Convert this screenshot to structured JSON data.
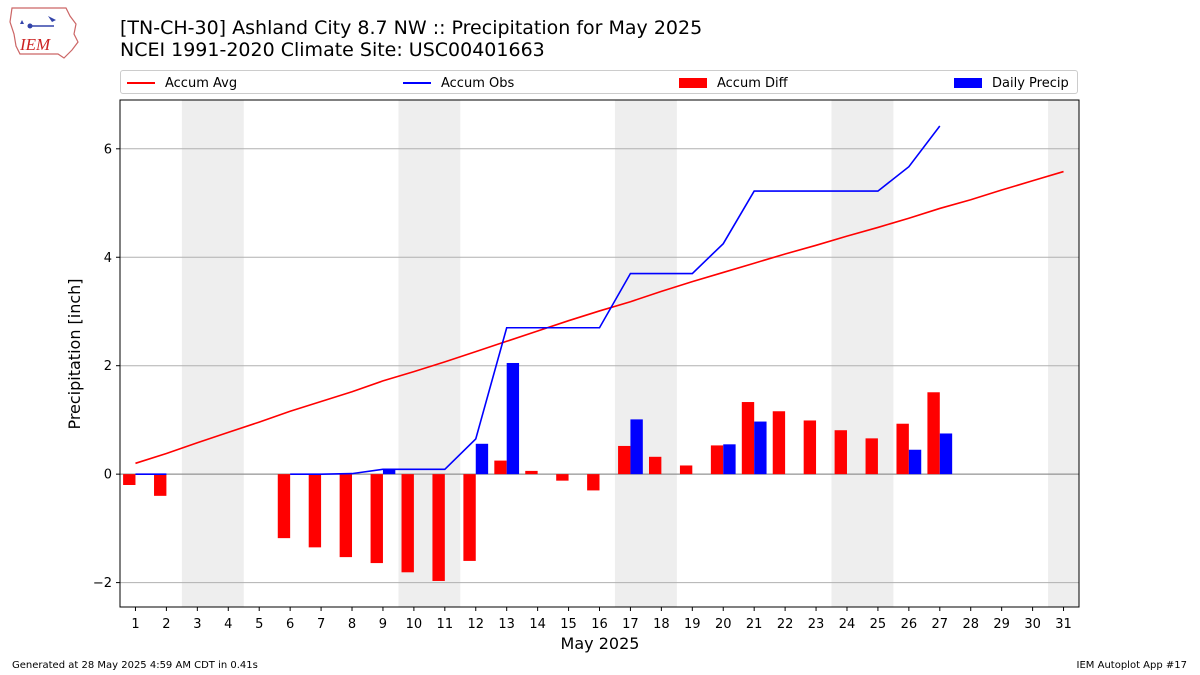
{
  "header": {
    "logo_text": "IEM",
    "title_line1": "[TN-CH-30] Ashland City 8.7 NW :: Precipitation for May 2025",
    "title_line2": "NCEI 1991-2020 Climate Site: USC00401663"
  },
  "legend": {
    "placement": "top, horizontal above plot",
    "items": [
      {
        "label": "Accum Avg",
        "kind": "line",
        "color": "#ff0000"
      },
      {
        "label": "Accum Obs",
        "kind": "line",
        "color": "#0000ff"
      },
      {
        "label": "Accum Diff",
        "kind": "bar",
        "color": "#ff0000"
      },
      {
        "label": "Daily Precip",
        "kind": "bar",
        "color": "#0000ff"
      }
    ]
  },
  "footer": {
    "generated": "Generated at 28 May 2025 4:59 AM CDT in 0.41s",
    "app": "IEM Autoplot App #17"
  },
  "chart_data": {
    "type": "bar",
    "xlabel": "May 2025",
    "ylabel": "Precipitation [inch]",
    "ylim": [
      -2.45,
      6.9
    ],
    "yticks": [
      -2,
      0,
      2,
      4,
      6
    ],
    "xticks": [
      1,
      2,
      3,
      4,
      5,
      6,
      7,
      8,
      9,
      10,
      11,
      12,
      13,
      14,
      15,
      16,
      17,
      18,
      19,
      20,
      21,
      22,
      23,
      24,
      25,
      26,
      27,
      28,
      29,
      30,
      31
    ],
    "xlim": [
      0.5,
      31.5
    ],
    "grid": "horizontal",
    "weekend_shading": [
      [
        2.5,
        4.5
      ],
      [
        9.5,
        11.5
      ],
      [
        16.5,
        18.5
      ],
      [
        23.5,
        25.5
      ],
      [
        30.5,
        31.5
      ]
    ],
    "weekend_color": "#eeeeee",
    "series": [
      {
        "name": "Accum Avg",
        "kind": "line",
        "color": "#ff0000",
        "x": [
          1,
          2,
          3,
          4,
          5,
          6,
          7,
          8,
          9,
          10,
          11,
          12,
          13,
          14,
          15,
          16,
          17,
          18,
          19,
          20,
          21,
          22,
          23,
          24,
          25,
          26,
          27,
          28,
          29,
          30,
          31
        ],
        "values": [
          0.2,
          0.38,
          0.58,
          0.77,
          0.96,
          1.16,
          1.34,
          1.52,
          1.72,
          1.89,
          2.07,
          2.26,
          2.45,
          2.64,
          2.83,
          3.01,
          3.18,
          3.37,
          3.55,
          3.72,
          3.89,
          4.06,
          4.22,
          4.39,
          4.55,
          4.72,
          4.9,
          5.06,
          5.24,
          5.41,
          5.58
        ]
      },
      {
        "name": "Accum Obs",
        "kind": "line",
        "color": "#0000ff",
        "segments": [
          {
            "x": [
              1,
              2
            ],
            "values": [
              0.0,
              0.0
            ]
          },
          {
            "x": [
              6,
              7,
              8,
              9,
              10,
              11,
              12,
              13,
              14,
              15,
              16,
              17,
              18,
              19,
              20,
              21,
              22,
              23,
              24,
              25,
              26,
              27
            ],
            "values": [
              0.0,
              0.0,
              0.01,
              0.09,
              0.09,
              0.09,
              0.65,
              2.7,
              2.7,
              2.7,
              2.7,
              3.7,
              3.7,
              3.7,
              4.25,
              5.22,
              5.22,
              5.22,
              5.22,
              5.22,
              5.67,
              6.42
            ]
          }
        ]
      },
      {
        "name": "Accum Diff",
        "kind": "bar",
        "color": "#ff0000",
        "x": [
          1,
          2,
          6,
          7,
          8,
          9,
          10,
          11,
          12,
          13,
          14,
          15,
          16,
          17,
          18,
          19,
          20,
          21,
          22,
          23,
          24,
          25,
          26,
          27
        ],
        "values": [
          -0.2,
          -0.4,
          -1.18,
          -1.35,
          -1.53,
          -1.64,
          -1.81,
          -1.97,
          -1.6,
          0.25,
          0.06,
          -0.12,
          -0.3,
          0.52,
          0.32,
          0.16,
          0.53,
          1.33,
          1.16,
          0.99,
          0.81,
          0.66,
          0.93,
          1.51
        ]
      },
      {
        "name": "Daily Precip",
        "kind": "bar",
        "color": "#0000ff",
        "x": [
          9,
          12,
          13,
          17,
          20,
          21,
          26,
          27
        ],
        "values": [
          0.08,
          0.56,
          2.05,
          1.01,
          0.55,
          0.97,
          0.45,
          0.75
        ]
      }
    ]
  }
}
